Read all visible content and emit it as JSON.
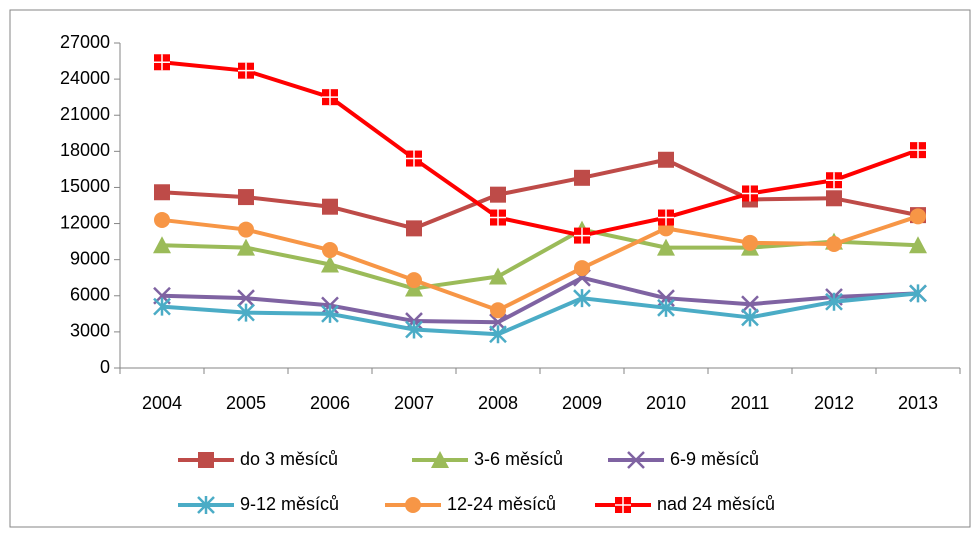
{
  "chart_data": {
    "type": "line",
    "categories": [
      "2004",
      "2005",
      "2006",
      "2007",
      "2008",
      "2009",
      "2010",
      "2011",
      "2012",
      "2013"
    ],
    "series": [
      {
        "name": "do 3 měsíců",
        "color": "#be4b48",
        "marker": "square",
        "values": [
          14600,
          14200,
          13400,
          11600,
          14400,
          15800,
          17300,
          14000,
          14100,
          12700
        ]
      },
      {
        "name": "3-6 měsíců",
        "color": "#9bbb59",
        "marker": "triangle",
        "values": [
          10200,
          10000,
          8600,
          6600,
          7600,
          11500,
          10000,
          10000,
          10500,
          10200
        ]
      },
      {
        "name": "6-9 měsíců",
        "color": "#7f63a2",
        "marker": "x",
        "values": [
          6000,
          5800,
          5200,
          3900,
          3800,
          7500,
          5800,
          5300,
          5900,
          6200
        ]
      },
      {
        "name": "9-12 měsíců",
        "color": "#4bacc6",
        "marker": "asterisk",
        "values": [
          5100,
          4600,
          4500,
          3200,
          2800,
          5800,
          5000,
          4200,
          5500,
          6200
        ]
      },
      {
        "name": "12-24 měsíců",
        "color": "#f79646",
        "marker": "circle",
        "values": [
          12300,
          11500,
          9800,
          7300,
          4800,
          8300,
          11600,
          10400,
          10300,
          12600
        ]
      },
      {
        "name": "nad 24 měsíců",
        "color": "#ff0000",
        "marker": "plus-square",
        "values": [
          25400,
          24700,
          22500,
          17400,
          12500,
          11000,
          12500,
          14500,
          15600,
          18100
        ]
      }
    ],
    "ylim": [
      0,
      27000
    ],
    "yticks": [
      0,
      3000,
      6000,
      9000,
      12000,
      15000,
      18000,
      21000,
      24000,
      27000
    ],
    "grid": false,
    "legend": "bottom"
  }
}
